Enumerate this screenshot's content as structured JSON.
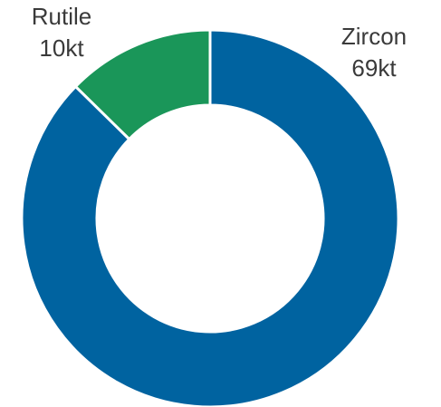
{
  "chart_data": {
    "type": "donut",
    "categories": [
      "Zircon",
      "Rutile"
    ],
    "values": [
      69,
      10
    ],
    "value_labels": [
      "69kt",
      "10kt"
    ],
    "colors": [
      "#0063a0",
      "#1a9659"
    ]
  }
}
